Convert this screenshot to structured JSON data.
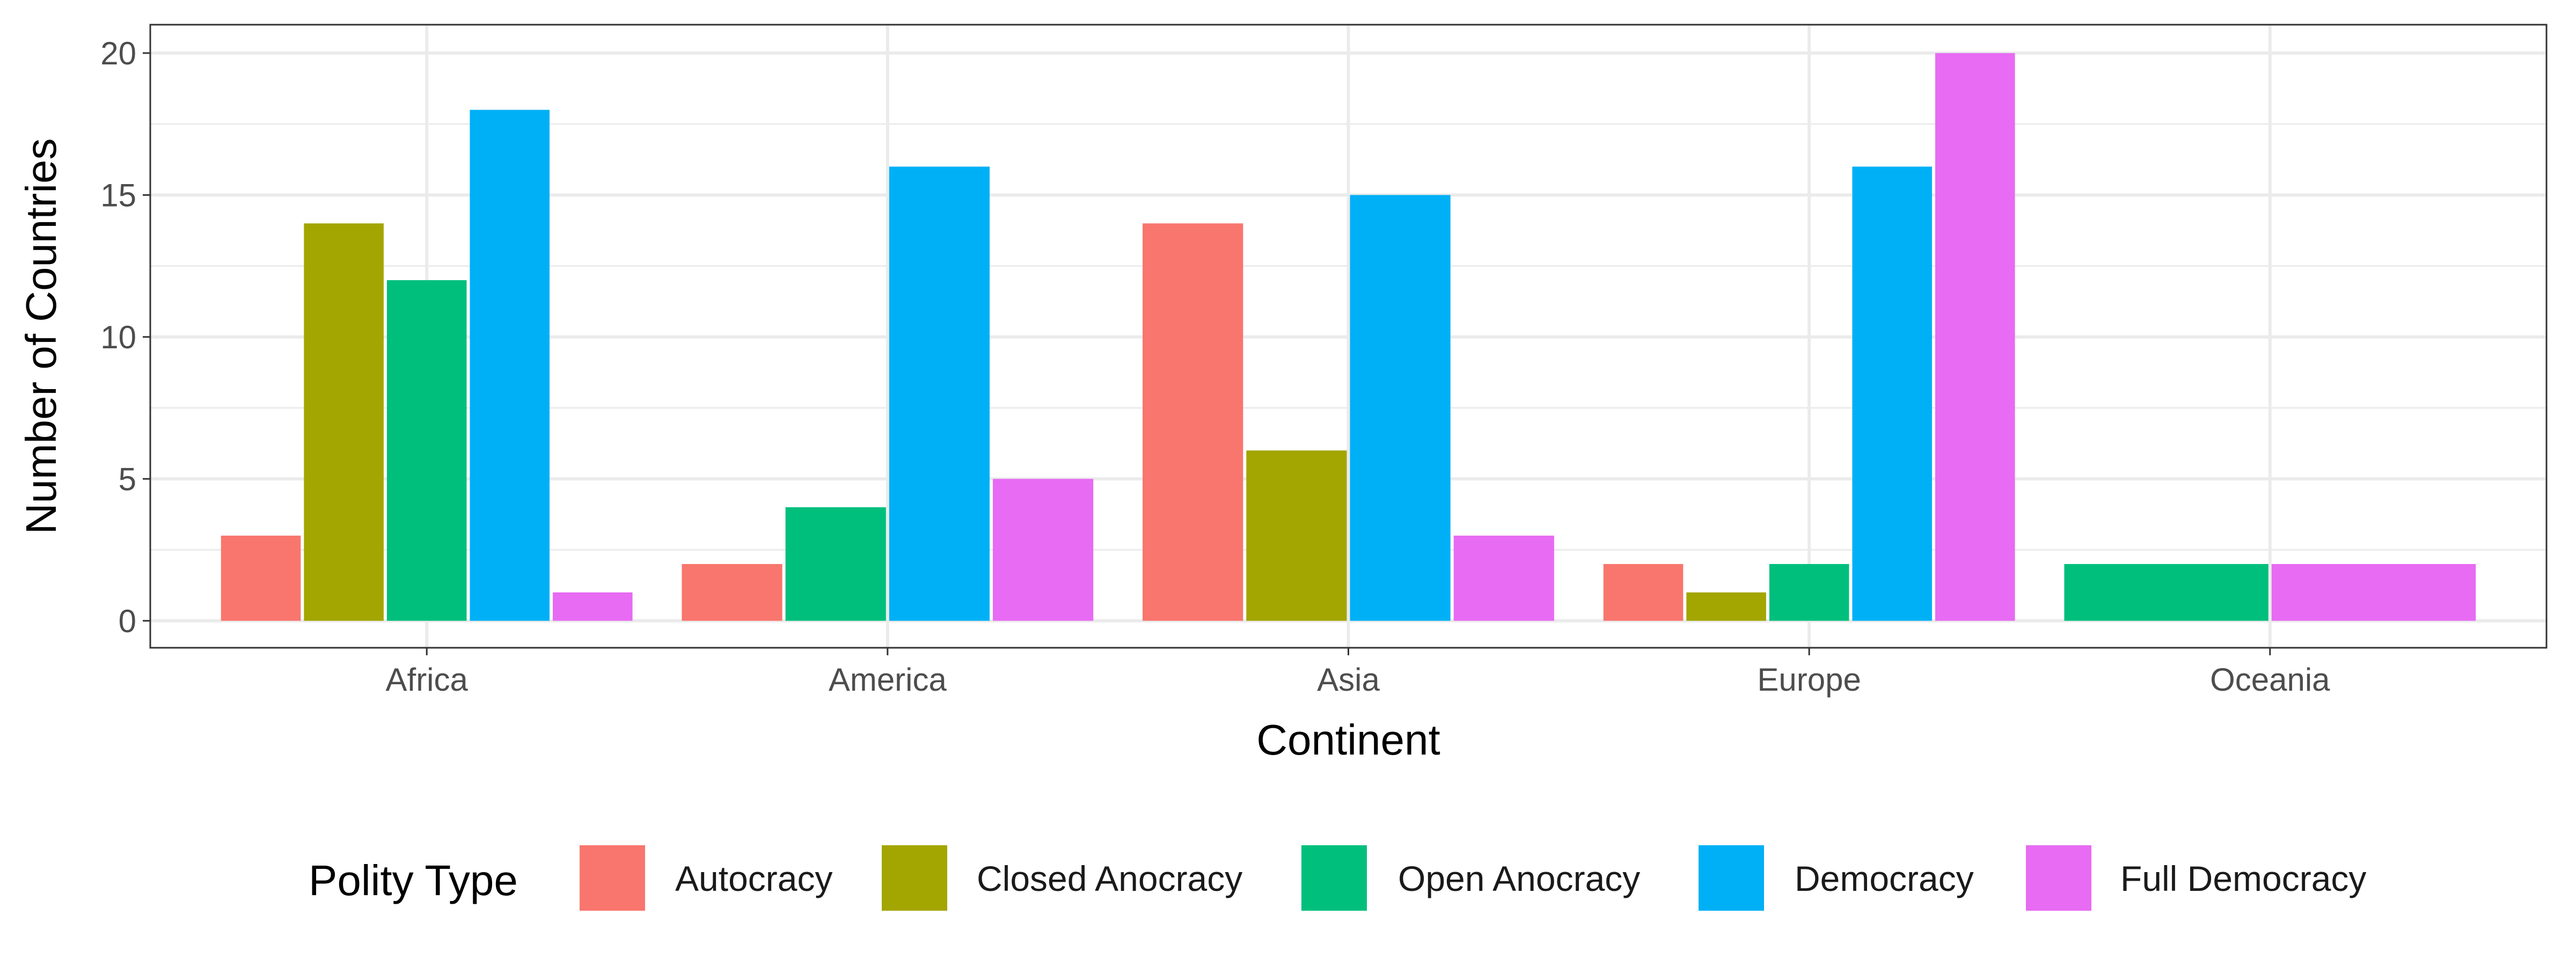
{
  "chart_data": {
    "type": "bar",
    "title": "",
    "xlabel": "Continent",
    "ylabel": "Number of Countries",
    "ylim": [
      0,
      21.0
    ],
    "yticks": [
      0,
      5,
      10,
      15,
      20
    ],
    "grid": true,
    "categories": [
      "Africa",
      "America",
      "Asia",
      "Europe",
      "Oceania"
    ],
    "legend": {
      "title": "Polity Type",
      "position": "bottom"
    },
    "series": [
      {
        "name": "Autocracy",
        "color": "#F8766D",
        "values": [
          3,
          2,
          14,
          2,
          0
        ]
      },
      {
        "name": "Closed Anocracy",
        "color": "#A3A500",
        "values": [
          14,
          0,
          6,
          1,
          0
        ]
      },
      {
        "name": "Open Anocracy",
        "color": "#00BF7D",
        "values": [
          12,
          4,
          0,
          2,
          2
        ]
      },
      {
        "name": "Democracy",
        "color": "#00B0F6",
        "values": [
          18,
          16,
          15,
          16,
          0
        ]
      },
      {
        "name": "Full Democracy",
        "color": "#E76BF3",
        "values": [
          1,
          5,
          3,
          20,
          2
        ]
      }
    ]
  }
}
